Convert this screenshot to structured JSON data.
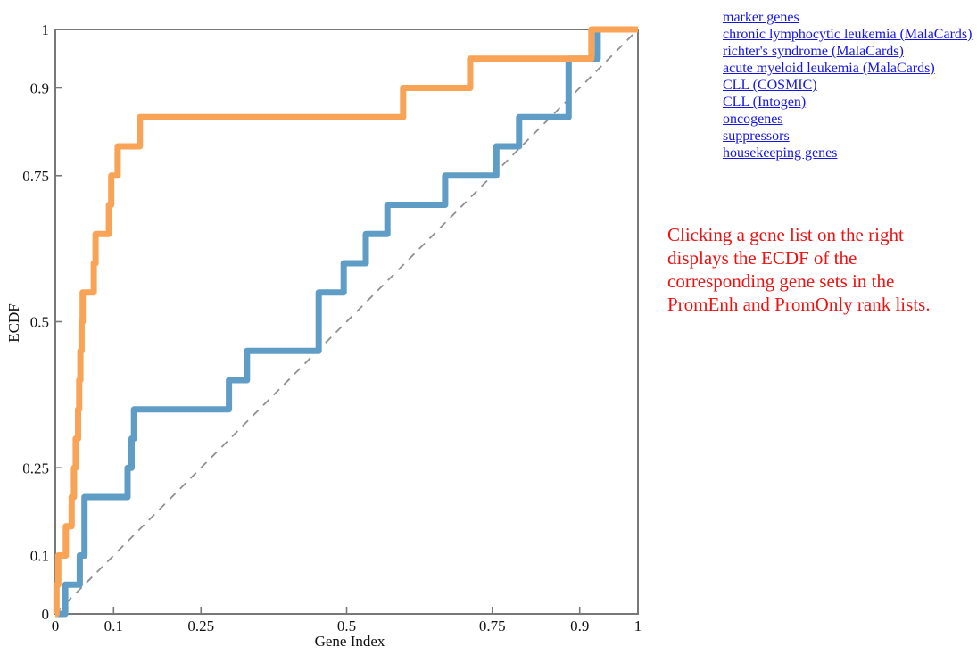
{
  "colors": {
    "curve_orange": "#f8a355",
    "curve_blue": "#5f9dc6",
    "axis": "#787878",
    "reference_dash": "#909090",
    "link_blue": "#1515e8",
    "caption_red": "#ee1111"
  },
  "links": [
    "marker genes",
    "chronic lymphocytic leukemia (MalaCards)",
    "richter's syndrome (MalaCards)",
    "acute myeloid leukemia (MalaCards)",
    "CLL (COSMIC)",
    "CLL (Intogen)",
    "oncogenes",
    "suppressors",
    "housekeeping genes"
  ],
  "caption_lines": [
    "Clicking a gene list on the right",
    "displays the ECDF of the",
    "corresponding gene sets in the",
    "PromEnh and PromOnly rank lists."
  ],
  "chart_data": {
    "type": "line",
    "subtype": "ecdf-step",
    "title": "",
    "xlabel": "Gene Index",
    "ylabel": "ECDF",
    "xlim": [
      0,
      1
    ],
    "ylim": [
      0,
      1
    ],
    "grid": false,
    "legend": "none",
    "x_ticks": {
      "values": [
        0,
        0.1,
        0.25,
        0.5,
        0.75,
        0.9,
        1
      ],
      "labels": [
        "0",
        "0.1",
        "0.25",
        "0.5",
        "0.75",
        "0.9",
        "1"
      ]
    },
    "y_ticks": {
      "values": [
        0,
        0.1,
        0.25,
        0.5,
        0.75,
        0.9,
        1
      ],
      "labels": [
        "0",
        "0.1",
        "0.25",
        "0.5",
        "0.75",
        "0.9",
        "1"
      ]
    },
    "reference_line": {
      "style": "dashed",
      "from": [
        0,
        0
      ],
      "to": [
        1,
        1
      ],
      "color": "#909090"
    },
    "series": [
      {
        "id": "orange",
        "color": "#f8a355",
        "points": [
          [
            0.002,
            0.05
          ],
          [
            0.005,
            0.1
          ],
          [
            0.018,
            0.15
          ],
          [
            0.028,
            0.2
          ],
          [
            0.032,
            0.25
          ],
          [
            0.035,
            0.3
          ],
          [
            0.039,
            0.35
          ],
          [
            0.041,
            0.4
          ],
          [
            0.043,
            0.45
          ],
          [
            0.045,
            0.5
          ],
          [
            0.047,
            0.55
          ],
          [
            0.066,
            0.6
          ],
          [
            0.069,
            0.65
          ],
          [
            0.092,
            0.7
          ],
          [
            0.096,
            0.75
          ],
          [
            0.107,
            0.8
          ],
          [
            0.145,
            0.85
          ],
          [
            0.597,
            0.9
          ],
          [
            0.712,
            0.95
          ],
          [
            0.92,
            1.0
          ]
        ]
      },
      {
        "id": "blue",
        "color": "#5f9dc6",
        "points": [
          [
            0.017,
            0.05
          ],
          [
            0.042,
            0.1
          ],
          [
            0.05,
            0.2
          ],
          [
            0.124,
            0.25
          ],
          [
            0.131,
            0.3
          ],
          [
            0.135,
            0.35
          ],
          [
            0.298,
            0.4
          ],
          [
            0.329,
            0.45
          ],
          [
            0.452,
            0.55
          ],
          [
            0.495,
            0.6
          ],
          [
            0.533,
            0.65
          ],
          [
            0.57,
            0.7
          ],
          [
            0.669,
            0.75
          ],
          [
            0.757,
            0.8
          ],
          [
            0.796,
            0.85
          ],
          [
            0.881,
            0.95
          ],
          [
            0.931,
            1.0
          ]
        ]
      }
    ]
  }
}
